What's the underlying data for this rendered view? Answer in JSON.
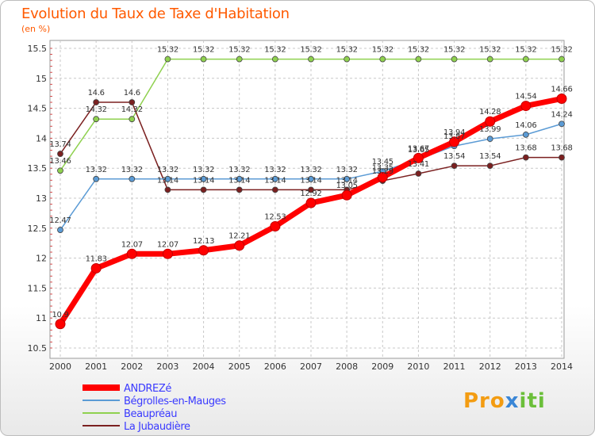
{
  "chart_data": {
    "type": "line",
    "title": "Evolution du Taux de Taxe d'Habitation",
    "subtitle": "(en %)",
    "x": [
      "2000",
      "2001",
      "2002",
      "2003",
      "2004",
      "2005",
      "2006",
      "2007",
      "2008",
      "2009",
      "2010",
      "2011",
      "2012",
      "2013",
      "2014"
    ],
    "ylim": [
      10.5,
      15.5
    ],
    "yticks": [
      "10.5",
      "11",
      "11.5",
      "12",
      "12.5",
      "13",
      "13.5",
      "14",
      "14.5",
      "15",
      "15.5"
    ],
    "grid": true,
    "legend_position": "bottom-left",
    "series": [
      {
        "name": "ANDREZé",
        "color": "#ff0000",
        "values": [
          10.9,
          11.83,
          12.07,
          12.07,
          12.13,
          12.21,
          12.53,
          12.92,
          13.05,
          13.35,
          13.67,
          13.94,
          14.28,
          14.54,
          14.66
        ],
        "labels": [
          "10.9",
          "11.83",
          "12.07",
          "12.07",
          "12.13",
          "12.21",
          "12.53",
          "12.92",
          "13.05",
          "13.35",
          "13.67",
          "13.94",
          "14.28",
          "14.54",
          "14.66"
        ]
      },
      {
        "name": "Bégrolles-en-Mauges",
        "color": "#5b9bd5",
        "values": [
          12.47,
          13.32,
          13.32,
          13.32,
          13.32,
          13.32,
          13.32,
          13.32,
          13.32,
          13.45,
          13.65,
          13.87,
          13.99,
          14.06,
          14.24
        ],
        "labels": [
          "12.47",
          "13.32",
          "13.32",
          "13.32",
          "13.32",
          "13.32",
          "13.32",
          "13.32",
          "13.32",
          "13.45",
          "13.65",
          "13.87",
          "13.99",
          "14.06",
          "14.24"
        ]
      },
      {
        "name": "Beaupréau",
        "color": "#8fd14f",
        "values": [
          13.46,
          14.32,
          14.32,
          15.32,
          15.32,
          15.32,
          15.32,
          15.32,
          15.32,
          15.32,
          15.32,
          15.32,
          15.32,
          15.32,
          15.32
        ],
        "labels": [
          "13.46",
          "14.32",
          "14.32",
          "15.32",
          "15.32",
          "15.32",
          "15.32",
          "15.32",
          "15.32",
          "15.32",
          "15.32",
          "15.32",
          "15.32",
          "15.32",
          "15.32"
        ]
      },
      {
        "name": "La Jubaudière",
        "color": "#7b2020",
        "values": [
          13.74,
          14.6,
          14.6,
          13.14,
          13.14,
          13.14,
          13.14,
          13.14,
          13.14,
          13.29,
          13.41,
          13.54,
          13.54,
          13.68,
          13.68
        ],
        "labels": [
          "13.74",
          "14.6",
          "14.6",
          "13.14",
          "13.14",
          "13.14",
          "13.14",
          "13.14",
          "13.14",
          "13.29",
          "13.41",
          "13.54",
          "13.54",
          "13.68",
          "13.68"
        ]
      }
    ]
  },
  "logo": {
    "p1": "Pro",
    "p2": "x",
    "p3": "iti"
  }
}
